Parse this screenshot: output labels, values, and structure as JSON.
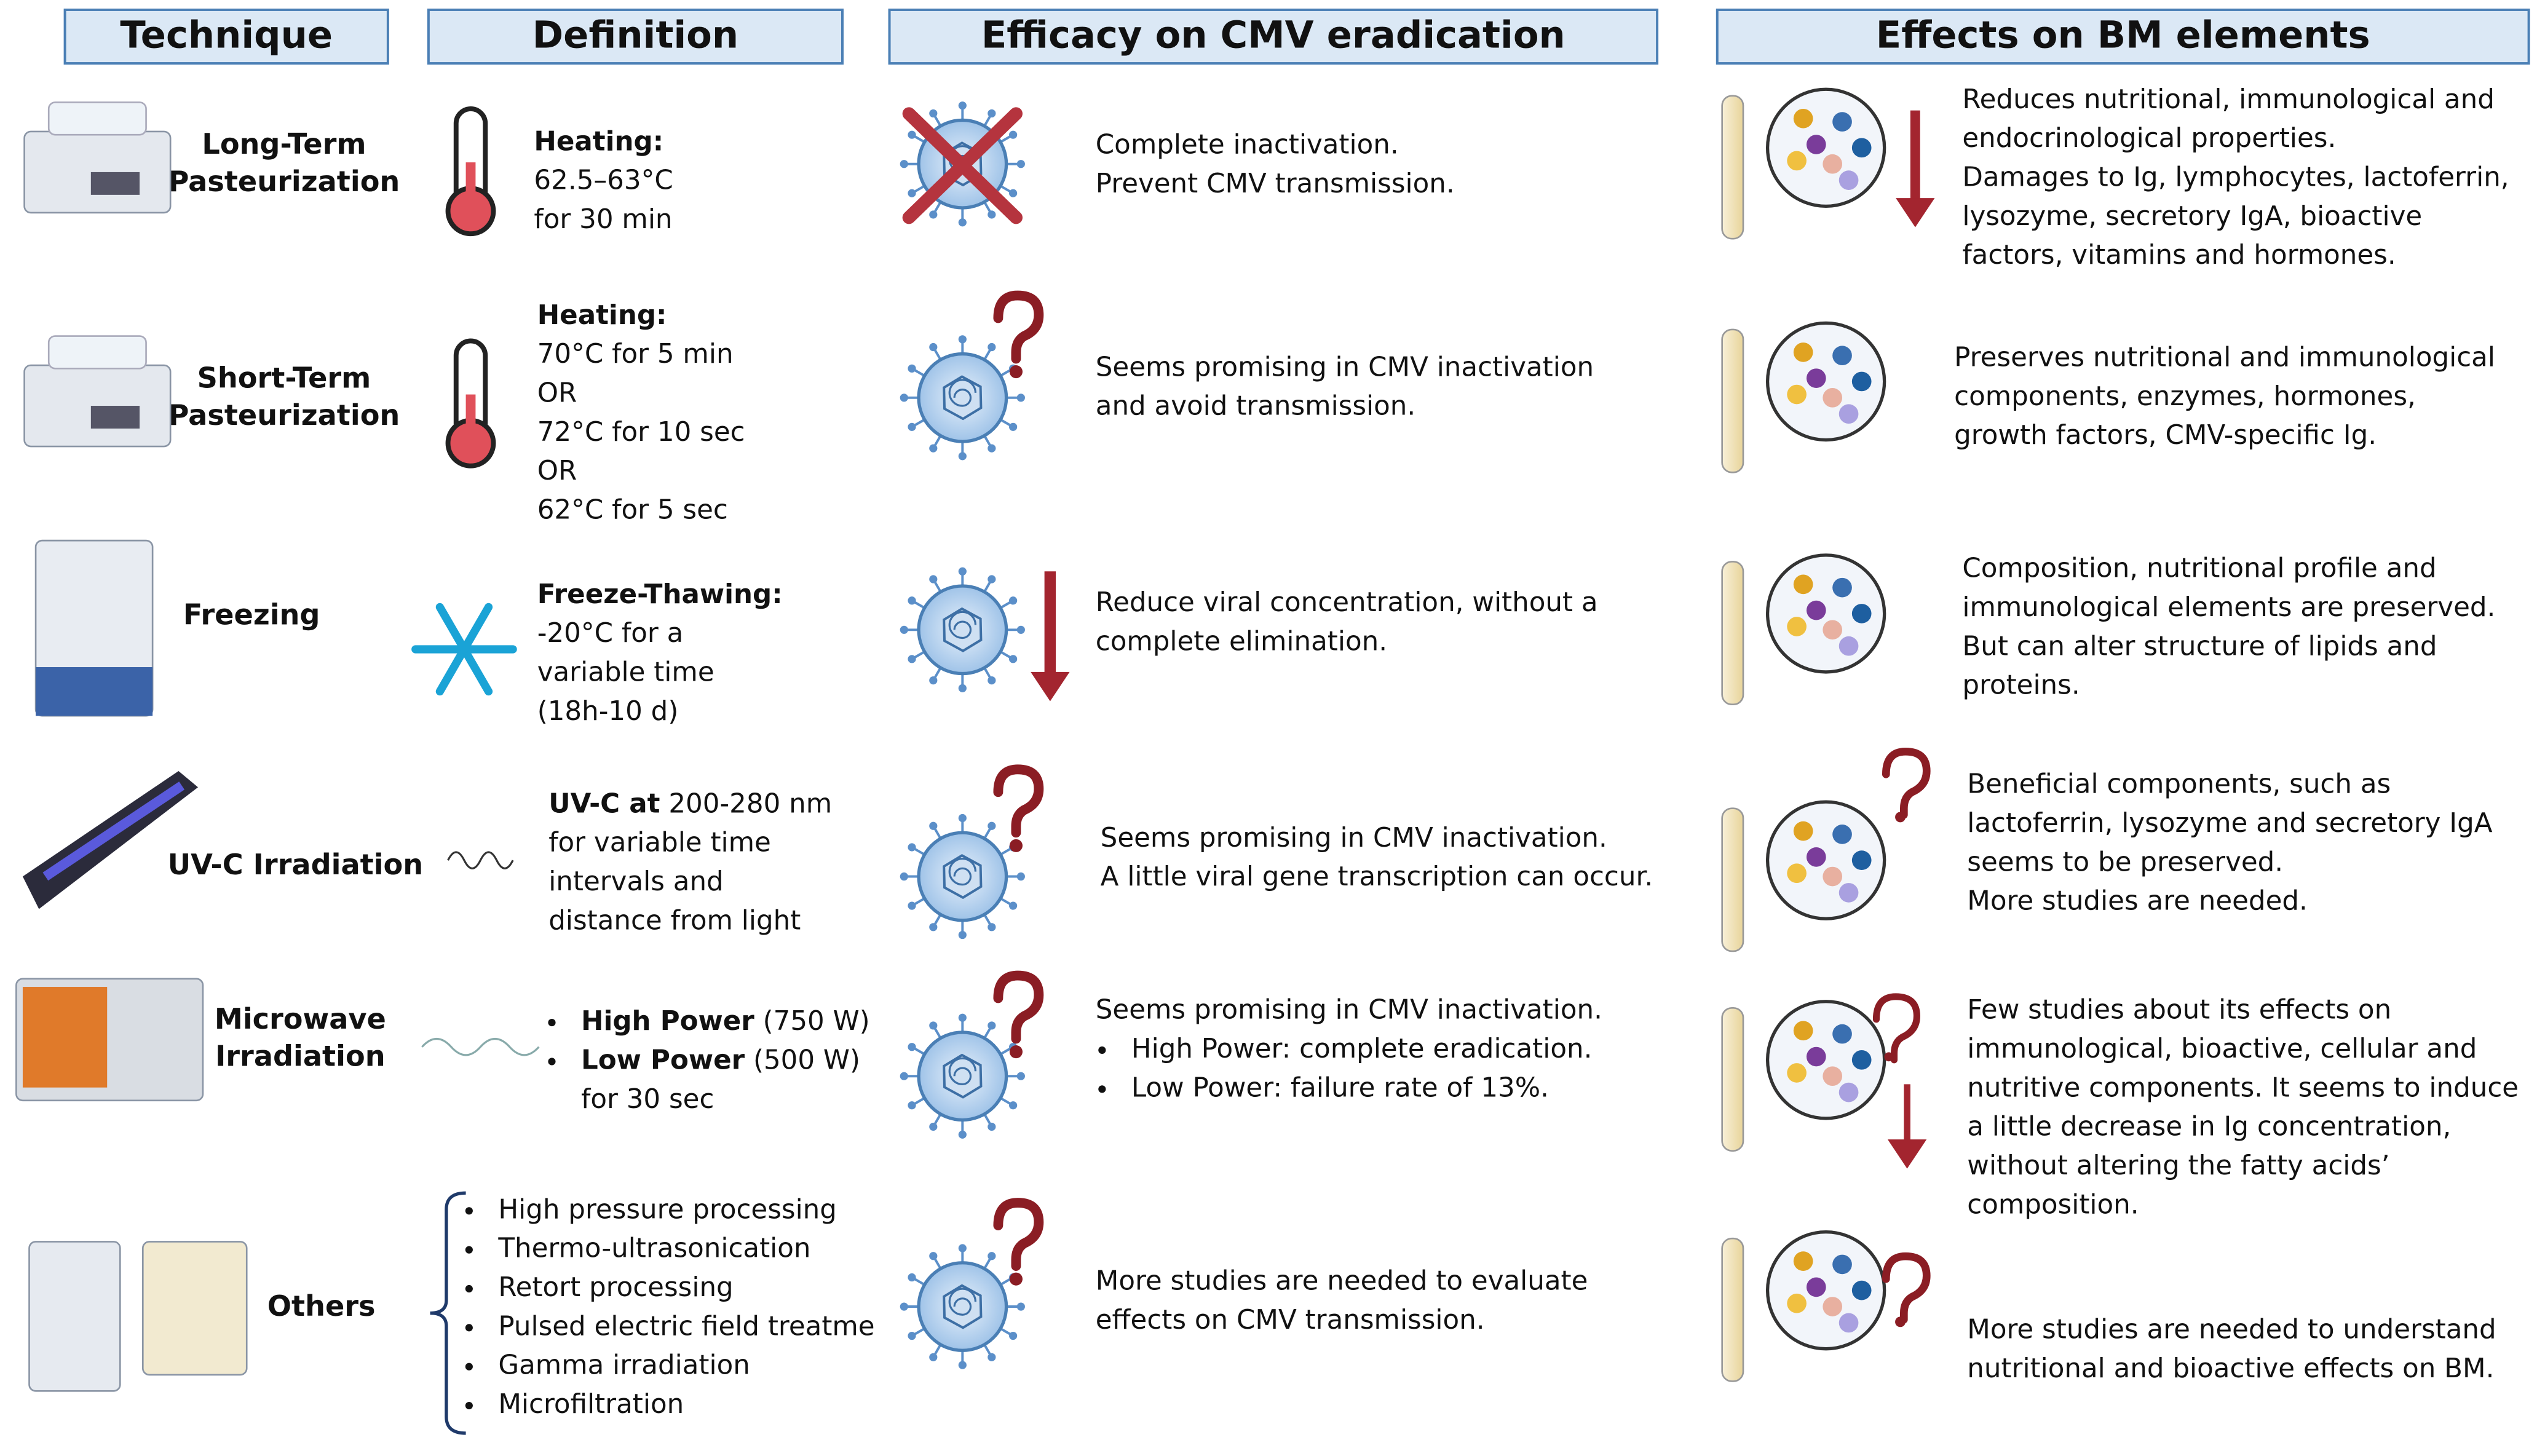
{
  "headers": [
    "Technique",
    "Definition",
    "Efficacy on CMV eradication",
    "Effects on BM elements"
  ],
  "rows": [
    {
      "technique": [
        "Long-Term",
        "Pasteurization"
      ],
      "definition": [
        {
          "b": "Heating:"
        },
        {
          "t": "62.5–63°C"
        },
        {
          "t": "for 30 min"
        }
      ],
      "efficacy": [
        {
          "t": "Complete inactivation."
        },
        {
          "t": "Prevent CMV transmission."
        }
      ],
      "effects": [
        "Reduces nutritional, immunological and",
        "endocrinological properties.",
        "Damages to Ig, lymphocytes, lactoferrin,",
        "lysozyme, secretory IgA, bioactive",
        "factors, vitamins and hormones."
      ]
    },
    {
      "technique": [
        "Short-Term",
        "Pasteurization"
      ],
      "definition": [
        {
          "b": "Heating:"
        },
        {
          "t": "70°C for 5 min"
        },
        {
          "t": "OR"
        },
        {
          "t": "72°C for 10 sec"
        },
        {
          "t": "OR"
        },
        {
          "t": "62°C for 5 sec"
        }
      ],
      "efficacy": [
        {
          "t": "Seems promising in CMV inactivation"
        },
        {
          "t": "and avoid transmission."
        }
      ],
      "effects": [
        "Preserves nutritional and immunological",
        "components, enzymes, hormones,",
        "growth factors, CMV-specific Ig."
      ]
    },
    {
      "technique": [
        "Freezing"
      ],
      "definition": [
        {
          "b": "Freeze-Thawing:"
        },
        {
          "t": "-20°C for a"
        },
        {
          "t": "variable time"
        },
        {
          "t": "(18h-10 d)"
        }
      ],
      "efficacy": [
        {
          "t": "Reduce viral concentration, without a"
        },
        {
          "t": "complete elimination."
        }
      ],
      "effects": [
        "Composition, nutritional profile and",
        "immunological elements are preserved.",
        "But can alter structure of lipids and",
        "proteins."
      ]
    },
    {
      "technique": [
        "UV-C Irradiation"
      ],
      "definition": [
        {
          "b": "UV-C at",
          "t": " 200-280 nm"
        },
        {
          "t": "for variable time"
        },
        {
          "t": "intervals and"
        },
        {
          "t": "distance from light"
        }
      ],
      "efficacy": [
        {
          "t": "Seems promising in CMV inactivation."
        },
        {
          "t": "A little viral gene transcription can occur."
        }
      ],
      "effects": [
        "Beneficial components, such as",
        "lactoferrin, lysozyme and secretory IgA",
        "seems to be preserved.",
        "More studies are needed."
      ]
    },
    {
      "technique": [
        "Microwave",
        "Irradiation"
      ],
      "definition": [
        {
          "b": "High Power",
          "t": " (750 W)",
          "bullet": true
        },
        {
          "b": "Low Power",
          "t": " (500 W)",
          "bullet": true
        },
        {
          "t": "for 30 sec"
        }
      ],
      "efficacy": [
        {
          "t": "Seems promising in CMV inactivation."
        },
        {
          "t": "High Power: complete eradication.",
          "bullet": true
        },
        {
          "t": "Low Power: failure rate of 13%.",
          "bullet": true
        }
      ],
      "effects": [
        "Few studies about its effects on",
        "immunological, bioactive, cellular and",
        "nutritive components. It seems to induce",
        "a little decrease in Ig concentration,",
        "without altering the fatty acids’",
        "composition."
      ]
    },
    {
      "technique": [
        "Others"
      ],
      "definition": [
        {
          "t": "High pressure processing",
          "bullet": true
        },
        {
          "t": "Thermo-ultrasonication",
          "bullet": true
        },
        {
          "t": "Retort processing",
          "bullet": true
        },
        {
          "t": "Pulsed electric field treatme",
          "bullet": true
        },
        {
          "t": "Gamma irradiation",
          "bullet": true
        },
        {
          "t": "Microfiltration",
          "bullet": true
        }
      ],
      "efficacy": [
        {
          "t": "More studies are needed to evaluate"
        },
        {
          "t": "effects on CMV transmission."
        }
      ],
      "effects": [
        "More studies are needed to understand",
        "nutritional and bioactive effects on BM."
      ]
    }
  ]
}
